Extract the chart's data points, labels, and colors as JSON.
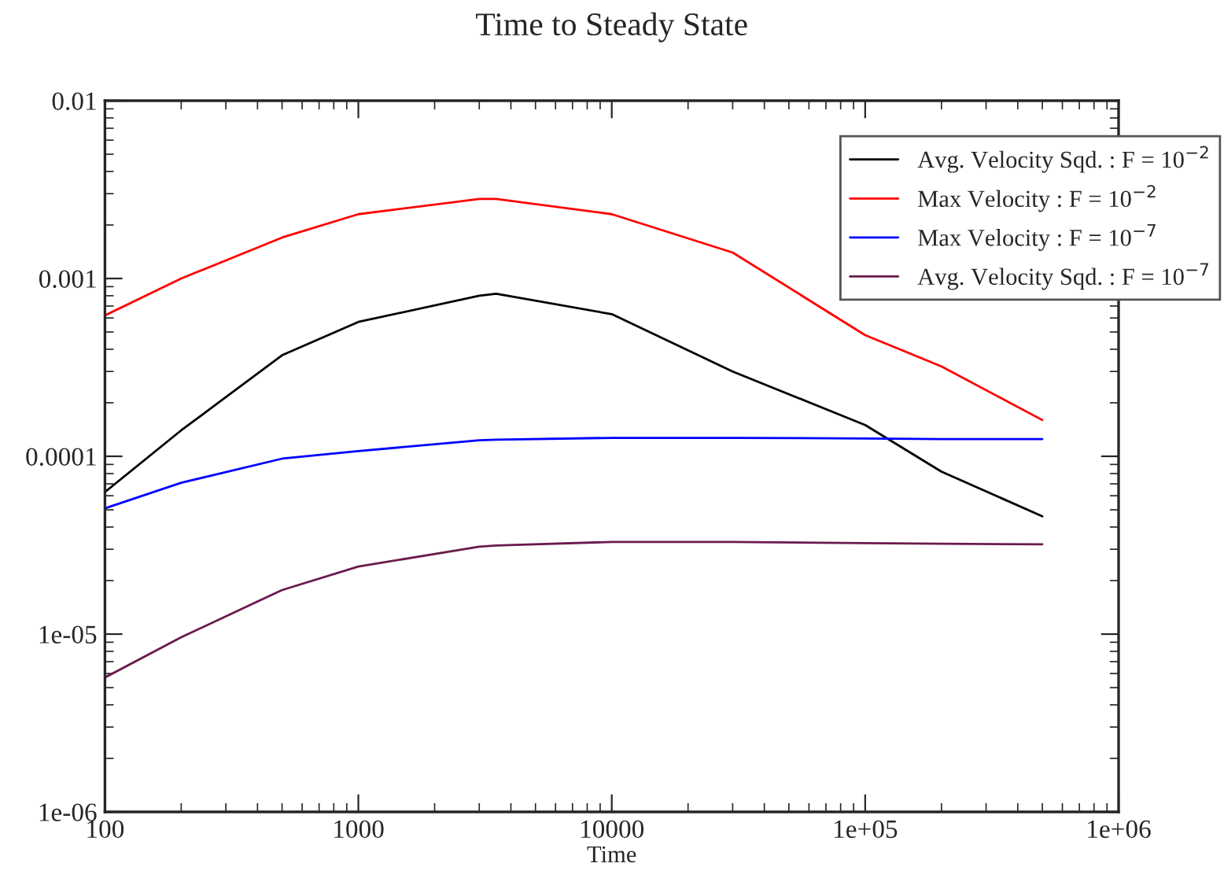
{
  "chart_data": {
    "type": "line",
    "title": "Time to Steady State",
    "xlabel": "Time",
    "log": "xy",
    "legend": "top right",
    "grid": false,
    "line_style": "solid",
    "marker": "none",
    "xlim": [
      100,
      1000000
    ],
    "xticks": [
      100,
      1000,
      10000,
      {
        "value": 100000,
        "label": "1e+05"
      },
      {
        "value": 1000000,
        "label": "1e+06"
      }
    ],
    "ylim": [
      1e-06,
      0.01
    ],
    "yticks": [
      {
        "value": 1e-06,
        "label": "1e-06"
      },
      {
        "value": 1e-05,
        "label": "1e-05"
      },
      0.0001,
      0.001,
      0.01
    ],
    "x": [
      100,
      200,
      500,
      1000,
      3000,
      3500,
      10000,
      30000,
      100000,
      200000,
      500000
    ],
    "series": [
      {
        "name": "Avg. Velocity Sqd. : F = 10$^{−2}$",
        "color": "#000000",
        "values": [
          6.3e-05,
          0.00014,
          0.00037,
          0.00057,
          0.0008,
          0.00082,
          0.00063,
          0.0003,
          0.00015,
          8.2e-05,
          4.6e-05
        ]
      },
      {
        "name": "Max Velocity : F = 10$^{−2}$",
        "color": "#ff0000",
        "values": [
          0.00062,
          0.001,
          0.0017,
          0.0023,
          0.0028,
          0.0028,
          0.0023,
          0.0014,
          0.00048,
          0.00032,
          0.00016
        ]
      },
      {
        "name": "Max Velocity : F = 10$^{−7}$",
        "color": "#0000ff",
        "values": [
          5.1e-05,
          7.1e-05,
          9.7e-05,
          0.000107,
          0.000123,
          0.000124,
          0.000127,
          0.000127,
          0.000126,
          0.000125,
          0.000125
        ]
      },
      {
        "name": "Avg. Velocity Sqd. : F = 10$^{−7}$",
        "color": "#6a1b4d",
        "values": [
          5.7e-06,
          9.6e-06,
          1.77e-05,
          2.4e-05,
          3.1e-05,
          3.15e-05,
          3.3e-05,
          3.3e-05,
          3.25e-05,
          3.22e-05,
          3.2e-05
        ]
      }
    ]
  }
}
